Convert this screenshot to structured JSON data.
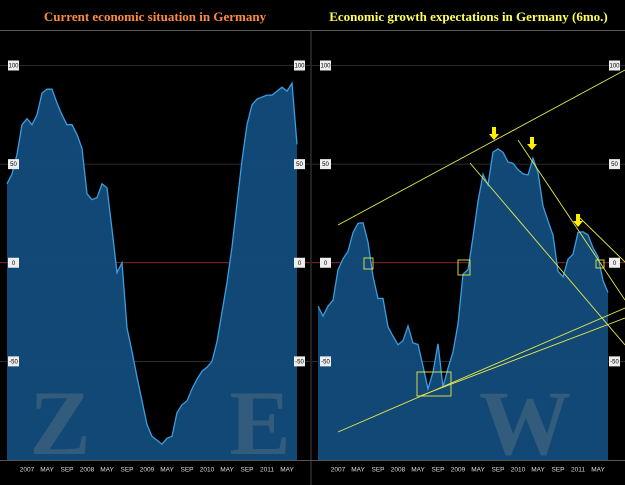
{
  "chart_data": [
    {
      "type": "area",
      "title": "Current economic situation in Germany",
      "title_color": "#ff8a3c",
      "categories": [
        null,
        null,
        null,
        null,
        "2007",
        null,
        null,
        null,
        "MAY",
        null,
        null,
        null,
        "SEP",
        null,
        null,
        null,
        "2008",
        null,
        null,
        null,
        "MAY",
        null,
        null,
        null,
        "SEP",
        null,
        null,
        null,
        "2009",
        null,
        null,
        null,
        "MAY",
        null,
        null,
        null,
        "SEP",
        null,
        null,
        null,
        "2010",
        null,
        null,
        null,
        "MAY",
        null,
        null,
        null,
        "SEP",
        null,
        null,
        null,
        "2011",
        null,
        null,
        null,
        "MAY",
        null,
        null
      ],
      "values": [
        40,
        45,
        55,
        70,
        73,
        70,
        75,
        86,
        88,
        88,
        81,
        75,
        70,
        70,
        65,
        58,
        35,
        32,
        33,
        40,
        38,
        17,
        -5,
        0,
        -33,
        -45,
        -58,
        -70,
        -82,
        -88,
        -90,
        -92,
        -89,
        -88,
        -76,
        -72,
        -70,
        -64,
        -59,
        -55,
        -53,
        -50,
        -40,
        -25,
        -10,
        8,
        30,
        52,
        70,
        80,
        83,
        84,
        85,
        85,
        87,
        89,
        87,
        91,
        60
      ],
      "color": "#3a9ee0",
      "ylim": [
        -100,
        118
      ],
      "yticks": [
        -50,
        0,
        50,
        100
      ],
      "watermark": [
        "Z",
        "E"
      ]
    },
    {
      "type": "area",
      "title": "Economic growth expectations in Germany (6mo.)",
      "title_color": "#ffff55",
      "categories": [
        null,
        null,
        null,
        null,
        "2007",
        null,
        null,
        null,
        "MAY",
        null,
        null,
        null,
        "SEP",
        null,
        null,
        null,
        "2008",
        null,
        null,
        null,
        "MAY",
        null,
        null,
        null,
        "SEP",
        null,
        null,
        null,
        "2009",
        null,
        null,
        null,
        "MAY",
        null,
        null,
        null,
        "SEP",
        null,
        null,
        null,
        "2010",
        null,
        null,
        null,
        "MAY",
        null,
        null,
        null,
        "SEP",
        null,
        null,
        null,
        "2011",
        null,
        null,
        null,
        "MAY",
        null,
        null
      ],
      "values": [
        -22,
        -27,
        -22,
        -19,
        -3.6,
        2,
        5.8,
        15.3,
        20,
        20.3,
        10.4,
        -6.9,
        -18.1,
        -18.1,
        -32.5,
        -37.2,
        -41.6,
        -39.5,
        -32,
        -40.7,
        -41.4,
        -52.4,
        -63.9,
        -55.5,
        -41.1,
        -63,
        -53.5,
        -45.2,
        -31,
        -5.8,
        -3.5,
        13,
        31.1,
        44.8,
        39.5,
        56.1,
        57.7,
        56,
        51.1,
        50.4,
        47.2,
        45.1,
        44.5,
        53,
        45.8,
        28.7,
        21.2,
        14,
        -4.3,
        -7.2,
        1.8,
        4.3,
        15.4,
        15.7,
        14.1,
        7.6,
        3.1,
        -9,
        -15.1
      ],
      "color": "#3a9ee0",
      "ylim": [
        -100,
        118
      ],
      "yticks": [
        -50,
        0,
        50,
        100
      ],
      "watermark": [
        "W"
      ]
    }
  ]
}
